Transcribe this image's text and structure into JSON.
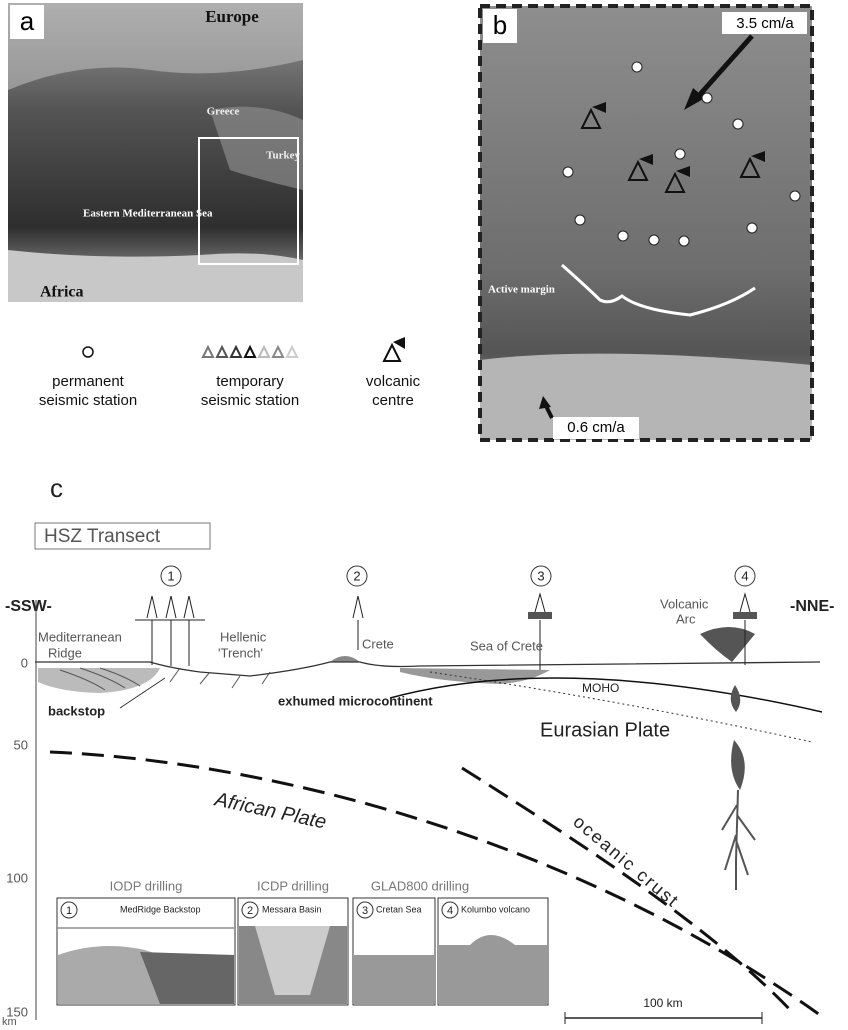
{
  "panel_a": {
    "label": "a",
    "places": [
      "Europe",
      "Greece",
      "Turkey",
      "Eastern Mediterranean Sea",
      "Africa"
    ]
  },
  "legend": [
    {
      "lines": [
        "permanent",
        "seismic station"
      ]
    },
    {
      "lines": [
        "temporary",
        "seismic station"
      ]
    },
    {
      "lines": [
        "volcanic",
        "centre"
      ]
    }
  ],
  "panel_b": {
    "label": "b",
    "velocity_north": "3.5 cm/a",
    "margin": "Active margin",
    "velocity_south": "0.6 cm/a"
  },
  "panel_c": {
    "label": "c",
    "title": "HSZ Transect",
    "left_end": "-SSW-",
    "right_end": "-NNE-",
    "sites": [
      "1",
      "2",
      "3",
      "4"
    ],
    "features": [
      "Mediterranean",
      "Ridge",
      "Hellenic",
      "'Trench'",
      "Crete",
      "Sea of Crete",
      "Volcanic",
      "Arc",
      "backstop",
      "exhumed microcontinent",
      "MOHO",
      "Eurasian Plate",
      "African Plate",
      "oceanic crust"
    ],
    "depth_labels": [
      "0",
      "50",
      "100",
      "150"
    ],
    "depth_unit": "km",
    "scale_bar": "100 km",
    "insets": [
      {
        "title": "IODP drilling",
        "site": "MedRidge Backstop"
      },
      {
        "title": "ICDP drilling",
        "site": "Messara Basin"
      },
      {
        "title": "GLAD800 drilling",
        "site": "Cretan Sea"
      },
      {
        "title": "",
        "site": "Kolumbo volcano"
      }
    ]
  }
}
